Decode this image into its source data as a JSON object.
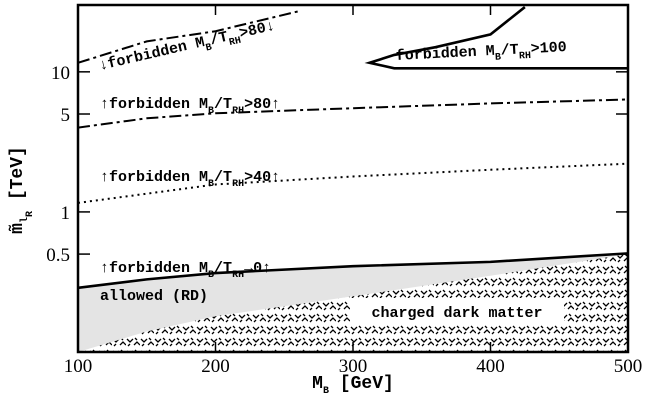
{
  "chart_data": {
    "type": "line",
    "x_label": [
      "M",
      "B",
      " [GeV]"
    ],
    "y_label": [
      "m̃",
      "l",
      "R",
      " [TeV]"
    ],
    "xlim": [
      100,
      500
    ],
    "ylim": [
      0.1,
      30
    ],
    "xticks": [
      100,
      200,
      300,
      400,
      500
    ],
    "yticks": [
      0.5,
      1,
      5,
      10
    ],
    "y_scale": "log",
    "series": [
      {
        "color": "#000000",
        "style": "solid",
        "fill_below": "#e4e4e4",
        "x": [
          100,
          150,
          200,
          300,
          400,
          500
        ],
        "values": [
          0.287,
          0.33,
          0.366,
          0.41,
          0.44,
          0.506
        ]
      },
      {
        "color": "#000000",
        "style": "none",
        "fill_below": "hatch",
        "x": [
          100,
          150,
          200,
          300,
          400,
          500
        ],
        "values": [
          0.1,
          0.14,
          0.18,
          0.25,
          0.35,
          0.5
        ]
      },
      {
        "color": "#000000",
        "style": "dotted",
        "x": [
          100,
          200,
          300,
          400,
          500
        ],
        "values": [
          1.16,
          1.57,
          1.79,
          2.0,
          2.21
        ]
      },
      {
        "color": "#000000",
        "style": "dashdot",
        "x": [
          100,
          150,
          200,
          300,
          400,
          500
        ],
        "values": [
          4.0,
          4.66,
          5.06,
          5.5,
          5.95,
          6.35
        ]
      },
      {
        "color": "#000000",
        "style": "dashdot",
        "x": [
          100,
          150,
          200,
          260
        ],
        "values": [
          11.6,
          16.5,
          19.5,
          27
        ]
      },
      {
        "color": "#000000",
        "style": "solid",
        "x": [
          500,
          400,
          330,
          312,
          330,
          360,
          400,
          425
        ],
        "values": [
          10.6,
          10.6,
          10.6,
          11.6,
          13.2,
          15,
          18.5,
          29
        ]
      }
    ],
    "annotations": [
      [
        "↓forbidden M",
        "B",
        "/T",
        "RH",
        ">80↓"
      ],
      [
        "forbidden M",
        "B",
        "/T",
        "RH",
        ">100"
      ],
      [
        "↑forbidden M",
        "B",
        "/T",
        "RH",
        ">80↑"
      ],
      [
        "↑forbidden M",
        "B",
        "/T",
        "RH",
        ">40↑"
      ],
      [
        "↑forbidden M",
        "B",
        "/T",
        "RH",
        "→0↑"
      ],
      [
        "allowed (RD)"
      ],
      [
        "charged dark matter"
      ]
    ]
  }
}
